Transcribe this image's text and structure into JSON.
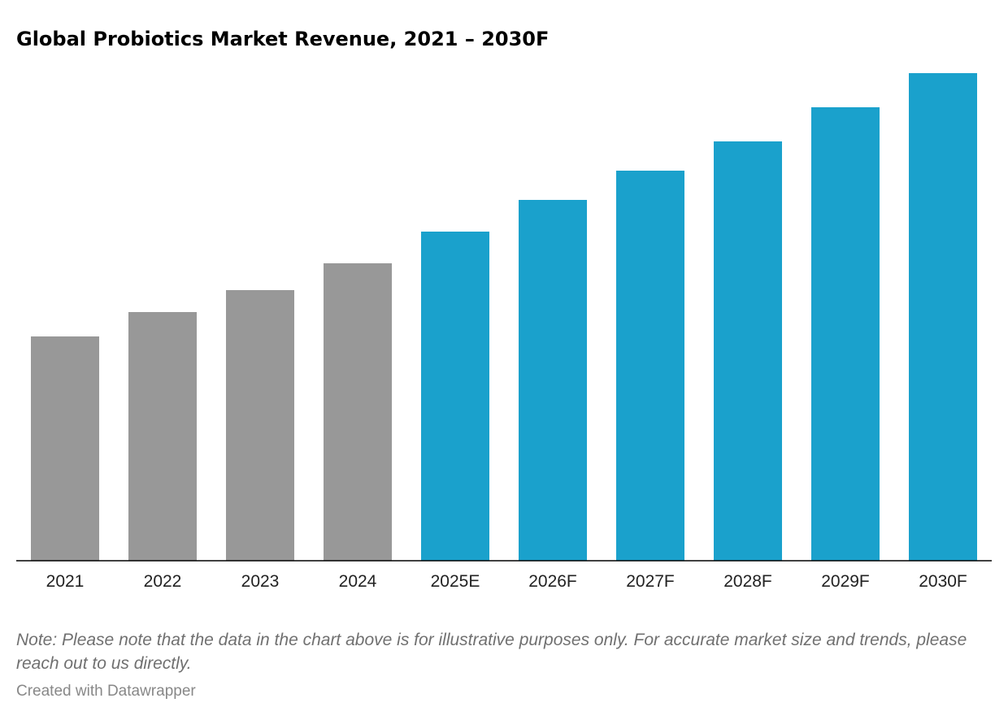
{
  "header": {
    "title": "Global Probiotics Market Revenue, 2021 – 2030F"
  },
  "footer": {
    "note": "Note: Please note that the data in the chart above is for illustrative purposes only. For accurate market size and trends, please reach out to us directly.",
    "credit": "Created with Datawrapper"
  },
  "chart_data": {
    "type": "bar",
    "title": "Global Probiotics Market Revenue, 2021 – 2030F",
    "xlabel": "",
    "ylabel": "",
    "categories": [
      "2021",
      "2022",
      "2023",
      "2024",
      "2025E",
      "2026F",
      "2027F",
      "2028F",
      "2029F",
      "2030F"
    ],
    "values": [
      46,
      51,
      55.5,
      61,
      67.5,
      74,
      80,
      86,
      93,
      100
    ],
    "ylim": [
      0,
      100
    ],
    "grid": false,
    "legend": "none",
    "colors": {
      "historical": "#989898",
      "forecast": "#1aa1cc",
      "baseline": "#000000"
    },
    "historical_count": 4
  }
}
